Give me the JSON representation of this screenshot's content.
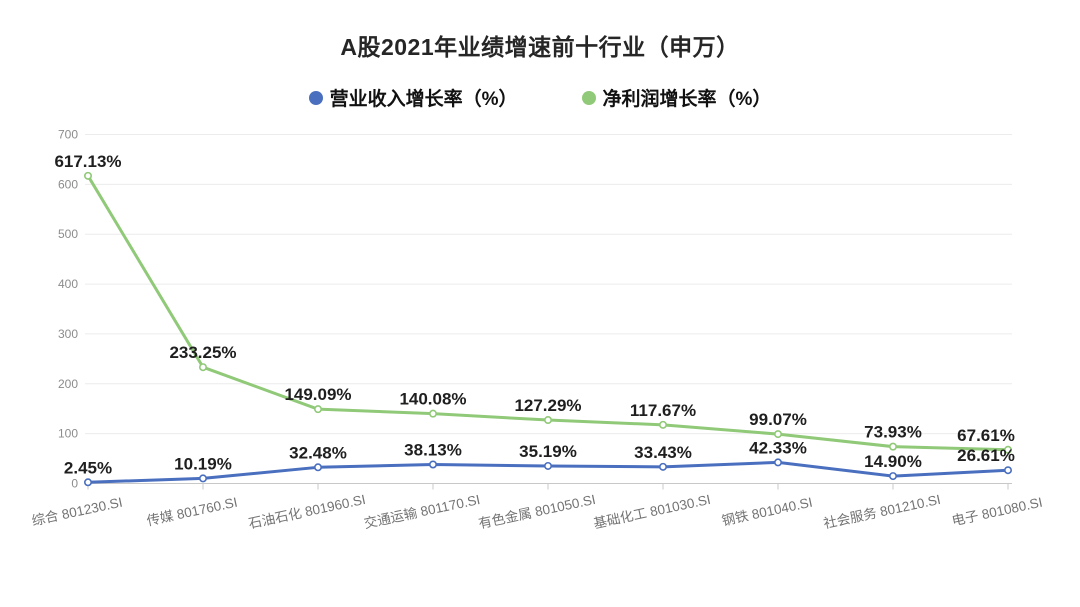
{
  "chart": {
    "title": "A股2021年业绩增速前十行业（申万）"
  },
  "chart_data": {
    "type": "line",
    "title": "A股2021年业绩增速前十行业（申万）",
    "categories": [
      "综合 801230.SI",
      "传媒 801760.SI",
      "石油石化 801960.SI",
      "交通运输 801170.SI",
      "有色金属 801050.SI",
      "基础化工 801030.SI",
      "钢铁 801040.SI",
      "社会服务 801210.SI",
      "电子 801080.SI"
    ],
    "series": [
      {
        "name": "营业收入增长率（%）",
        "color": "#4a6fbf",
        "marker": "open-circle",
        "values": [
          2.45,
          10.19,
          32.48,
          38.13,
          35.19,
          33.43,
          42.33,
          14.9,
          26.61
        ],
        "labels": [
          "2.45%",
          "10.19%",
          "32.48%",
          "38.13%",
          "35.19%",
          "33.43%",
          "42.33%",
          "14.90%",
          "26.61%"
        ]
      },
      {
        "name": "净利润增长率（%）",
        "color": "#90c978",
        "marker": "open-circle",
        "values": [
          617.13,
          233.25,
          149.09,
          140.08,
          127.29,
          117.67,
          99.07,
          73.93,
          67.61
        ],
        "labels": [
          "617.13%",
          "233.25%",
          "149.09%",
          "140.08%",
          "127.29%",
          "117.67%",
          "99.07%",
          "73.93%",
          "67.61%"
        ]
      }
    ],
    "ylim": [
      0,
      700
    ],
    "yticks": [
      0,
      100,
      200,
      300,
      400,
      500,
      600,
      700
    ],
    "grid": "horizontal",
    "legend_position": "top-center",
    "value_labels_shown": true,
    "colors": {
      "background": "#ffffff",
      "grid": "#ececec",
      "axis": "#c8c8c8",
      "y_tick_label": "#8c8c8c",
      "category_label": "#737373",
      "value_label": "#1f1f1f",
      "title": "#262626"
    }
  }
}
